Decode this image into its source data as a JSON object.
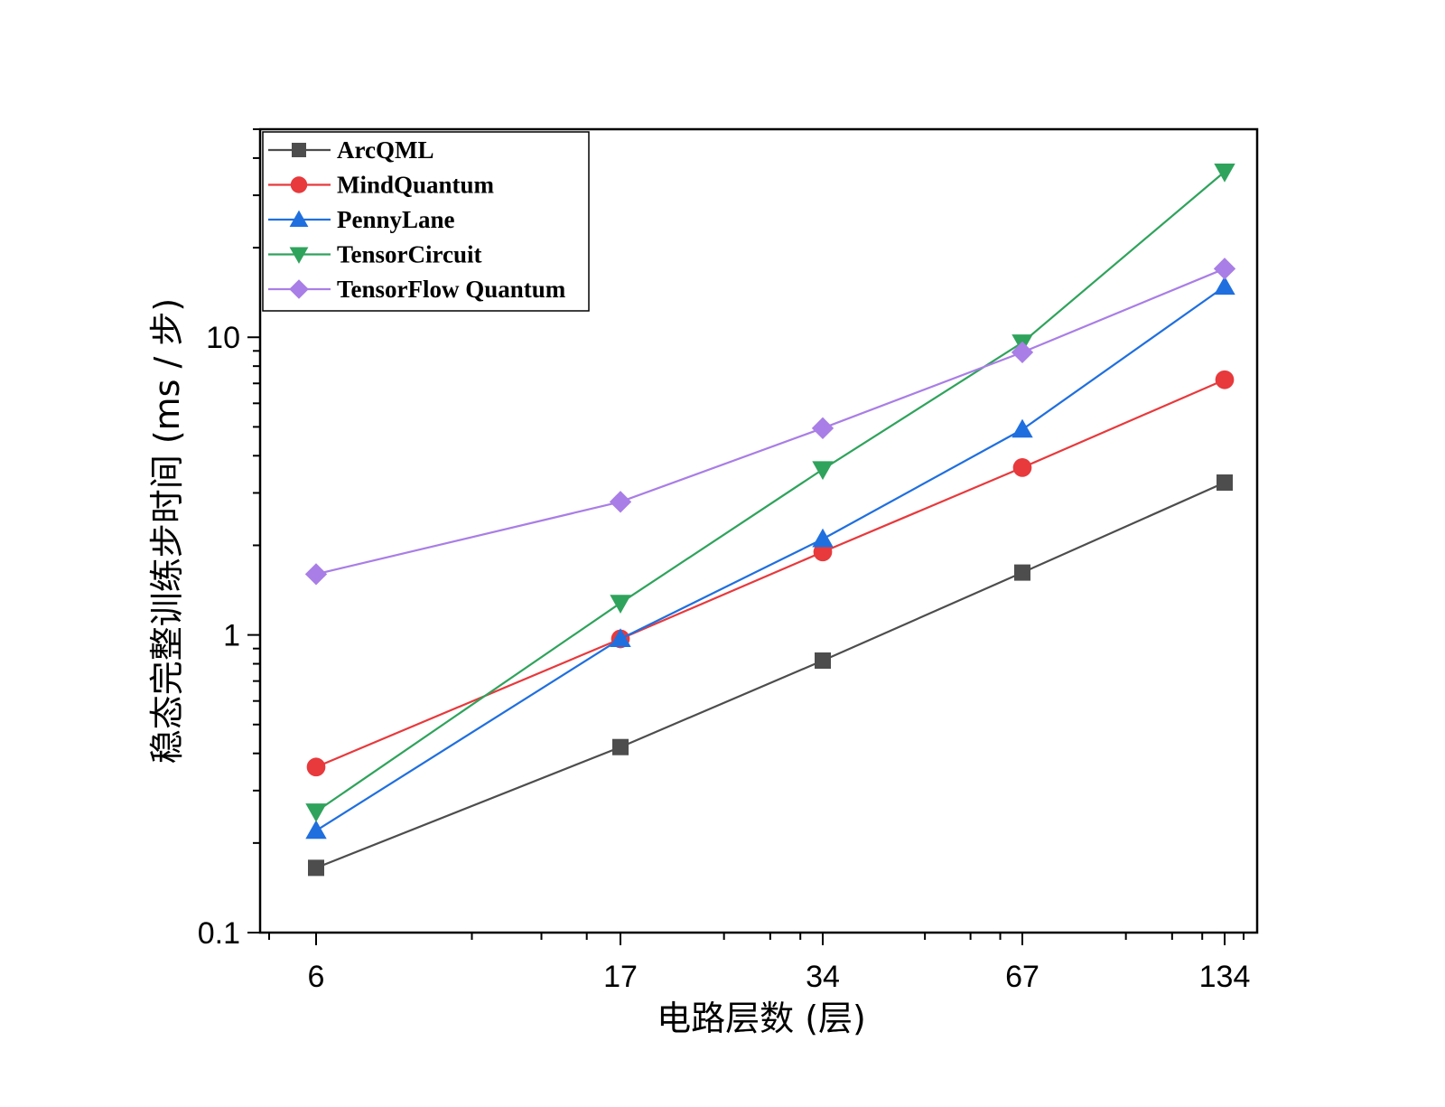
{
  "chart_data": {
    "type": "line",
    "xlabel": "电路层数 (层)",
    "ylabel": "稳态完整训练步时间 (ms / 步)",
    "x_scale": "log",
    "y_scale": "log",
    "ylim": [
      0.1,
      50
    ],
    "x": [
      6,
      17,
      34,
      67,
      134
    ],
    "x_tick_labels": [
      "6",
      "17",
      "34",
      "67",
      "134"
    ],
    "y_tick_labels": [
      "0.1",
      "1",
      "10"
    ],
    "y_ticks": [
      0.1,
      1,
      10
    ],
    "legend_position": "top-left",
    "series": [
      {
        "name": "ArcQML",
        "color": "#4d4d4d",
        "marker": "square",
        "values": [
          0.165,
          0.42,
          0.82,
          1.62,
          3.25
        ]
      },
      {
        "name": "MindQuantum",
        "color": "#e8393c",
        "marker": "circle",
        "values": [
          0.36,
          0.97,
          1.9,
          3.65,
          7.2
        ]
      },
      {
        "name": "PennyLane",
        "color": "#1f6fdf",
        "marker": "triangle-up",
        "values": [
          0.22,
          0.97,
          2.1,
          4.9,
          14.8
        ]
      },
      {
        "name": "TensorCircuit",
        "color": "#2fa35c",
        "marker": "triangle-down",
        "values": [
          0.255,
          1.28,
          3.6,
          9.6,
          36
        ]
      },
      {
        "name": "TensorFlow Quantum",
        "color": "#a97ee6",
        "marker": "diamond",
        "values": [
          1.6,
          2.8,
          4.95,
          8.9,
          17
        ]
      }
    ]
  }
}
